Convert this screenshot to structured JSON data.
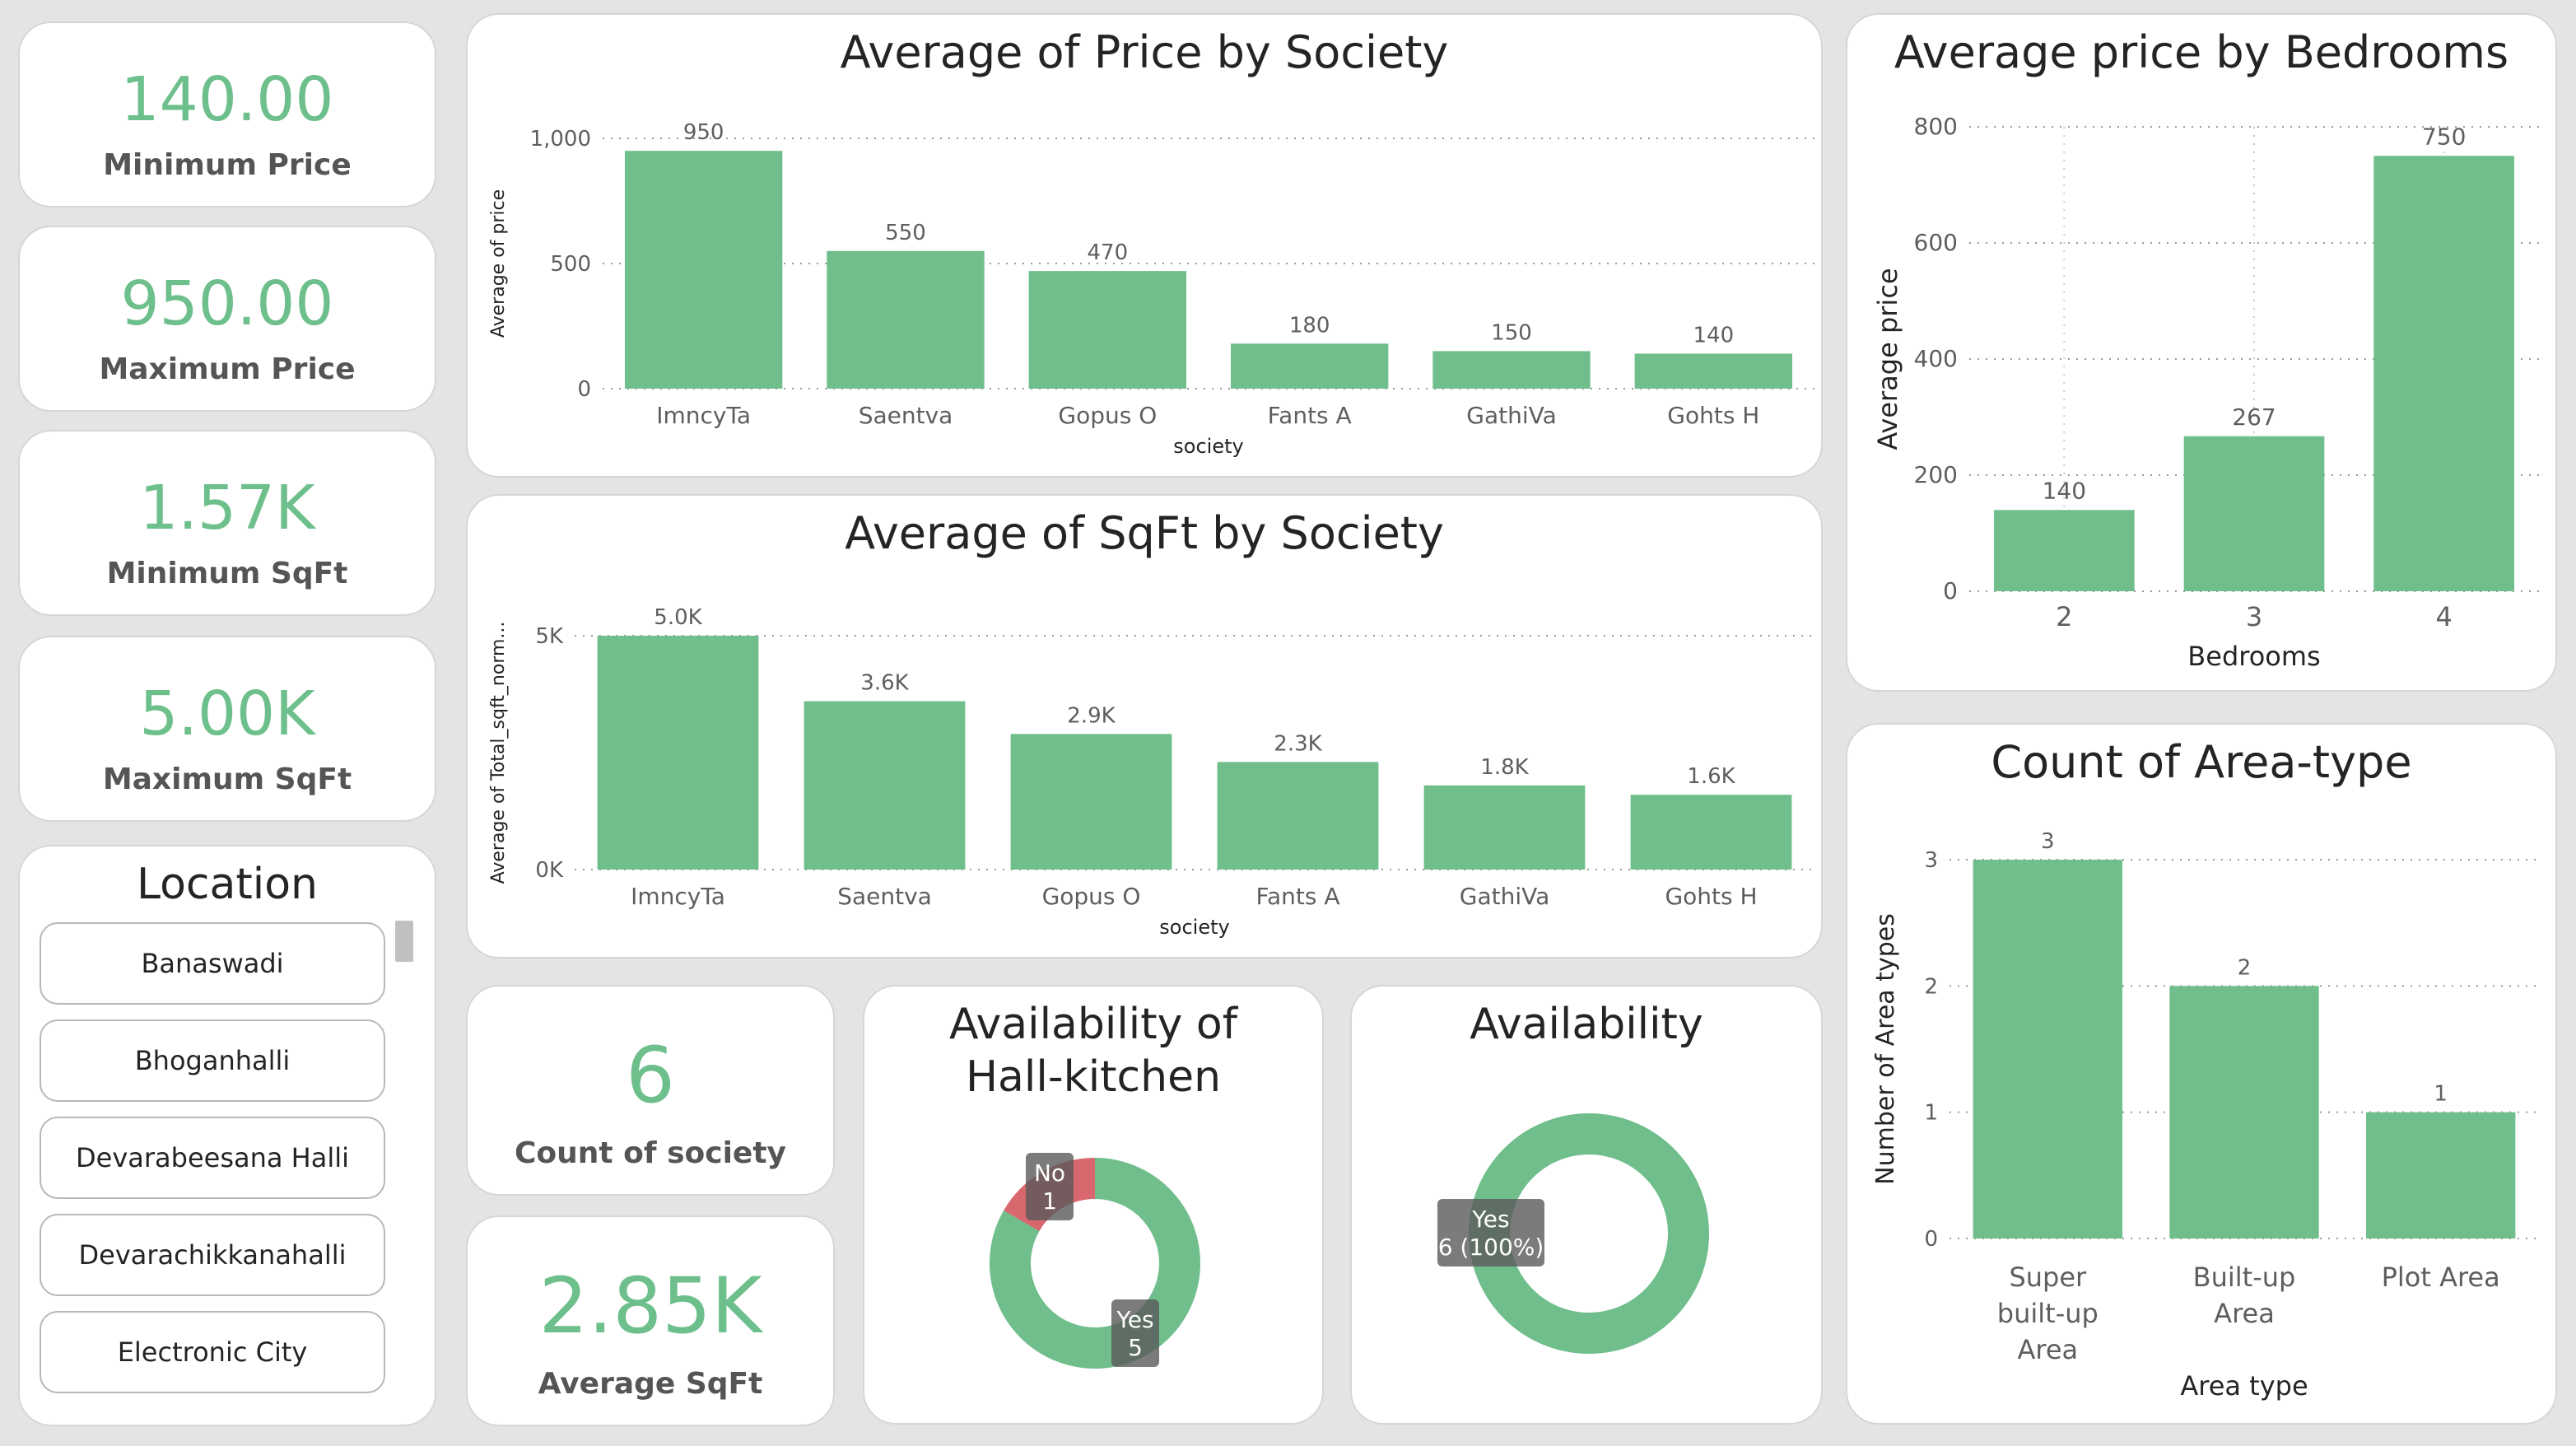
{
  "kpis": {
    "min_price": {
      "value": "140.00",
      "label": "Minimum Price"
    },
    "max_price": {
      "value": "950.00",
      "label": "Maximum Price"
    },
    "min_sqft": {
      "value": "1.57K",
      "label": "Minimum SqFt"
    },
    "max_sqft": {
      "value": "5.00K",
      "label": "Maximum SqFt"
    },
    "count_society": {
      "value": "6",
      "label": "Count of society"
    },
    "avg_sqft": {
      "value": "2.85K",
      "label": "Average SqFt"
    }
  },
  "location": {
    "title": "Location",
    "items": [
      "Banaswadi",
      "Bhoganhalli",
      "Devarabeesana Halli",
      "Devarachikkanahalli",
      "Electronic City"
    ]
  },
  "colors": {
    "bar": "#70be8c",
    "no": "#d9676e",
    "grid": "#999999"
  },
  "chart_data": [
    {
      "id": "price_by_society",
      "type": "bar",
      "title": "Average of Price by Society",
      "xlabel": "society",
      "ylabel": "Average of price",
      "categories": [
        "ImncyTa",
        "Saentva",
        "Gopus O",
        "Fants A",
        "GathiVa",
        "Gohts H"
      ],
      "values": [
        950,
        550,
        470,
        180,
        150,
        140
      ],
      "data_labels": [
        "950",
        "550",
        "470",
        "180",
        "150",
        "140"
      ],
      "yticks": [
        0,
        500,
        1000
      ],
      "ytick_labels": [
        "0",
        "500",
        "1,000"
      ],
      "ylim": [
        0,
        1000
      ]
    },
    {
      "id": "sqft_by_society",
      "type": "bar",
      "title": "Average of SqFt by Society",
      "xlabel": "society",
      "ylabel": "Average of Total_sqft_norm...",
      "categories": [
        "ImncyTa",
        "Saentva",
        "Gopus O",
        "Fants A",
        "GathiVa",
        "Gohts H"
      ],
      "values": [
        5000,
        3600,
        2900,
        2300,
        1800,
        1600
      ],
      "data_labels": [
        "5.0K",
        "3.6K",
        "2.9K",
        "2.3K",
        "1.8K",
        "1.6K"
      ],
      "yticks": [
        0,
        5000
      ],
      "ytick_labels": [
        "0K",
        "5K"
      ],
      "ylim": [
        0,
        5000
      ]
    },
    {
      "id": "price_by_bedrooms",
      "type": "bar",
      "title": "Average price by Bedrooms",
      "xlabel": "Bedrooms",
      "ylabel": "Average price",
      "categories": [
        "2",
        "3",
        "4"
      ],
      "values": [
        140,
        267,
        750
      ],
      "data_labels": [
        "140",
        "267",
        "750"
      ],
      "yticks": [
        0,
        200,
        400,
        600,
        800
      ],
      "ytick_labels": [
        "0",
        "200",
        "400",
        "600",
        "800"
      ],
      "ylim": [
        0,
        800
      ]
    },
    {
      "id": "count_area_type",
      "type": "bar",
      "title": "Count of Area-type",
      "xlabel": "Area type",
      "ylabel": "Number of Area types",
      "categories": [
        [
          "Super",
          "built-up",
          "Area"
        ],
        [
          "Built-up",
          "Area"
        ],
        [
          "Plot Area"
        ]
      ],
      "values": [
        3,
        2,
        1
      ],
      "data_labels": [
        "3",
        "2",
        "1"
      ],
      "yticks": [
        0,
        1,
        2,
        3
      ],
      "ytick_labels": [
        "0",
        "1",
        "2",
        "3"
      ],
      "ylim": [
        0,
        3
      ]
    },
    {
      "id": "hall_kitchen",
      "type": "pie",
      "title": "Availability of Hall-kitchen",
      "slices": [
        {
          "label": "Yes",
          "value": 5,
          "data_label": "5"
        },
        {
          "label": "No",
          "value": 1,
          "data_label": "1"
        }
      ]
    },
    {
      "id": "availability",
      "type": "pie",
      "title": "Availability",
      "slices": [
        {
          "label": "Yes",
          "value": 6,
          "data_label": "6 (100%)"
        }
      ]
    }
  ]
}
